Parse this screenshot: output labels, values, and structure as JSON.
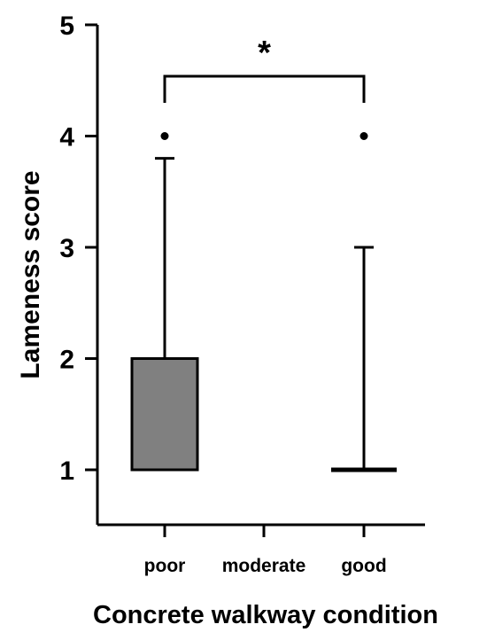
{
  "chart_data": {
    "type": "box",
    "xlabel": "Concrete walkway condition",
    "ylabel": "Lameness score",
    "categories": [
      "poor",
      "moderate",
      "good"
    ],
    "ylim": [
      0.5,
      5
    ],
    "yticks": [
      1,
      2,
      3,
      4,
      5
    ],
    "grid": false,
    "legend": "none",
    "colors": {
      "box_fill": "#808080",
      "line": "#000000"
    },
    "boxes": [
      {
        "category": "poor",
        "whisker_low": 1,
        "q1": 1,
        "median": 1,
        "q3": 2,
        "whisker_high": 3.8,
        "outliers": [
          4
        ]
      },
      {
        "category": "moderate",
        "whisker_low": null,
        "q1": null,
        "median": null,
        "q3": null,
        "whisker_high": null,
        "outliers": []
      },
      {
        "category": "good",
        "whisker_low": 1,
        "q1": 1,
        "median": 1,
        "q3": 1,
        "whisker_high": 3,
        "outliers": [
          4
        ]
      }
    ],
    "significance": {
      "from": "poor",
      "to": "good",
      "label": "*"
    }
  }
}
